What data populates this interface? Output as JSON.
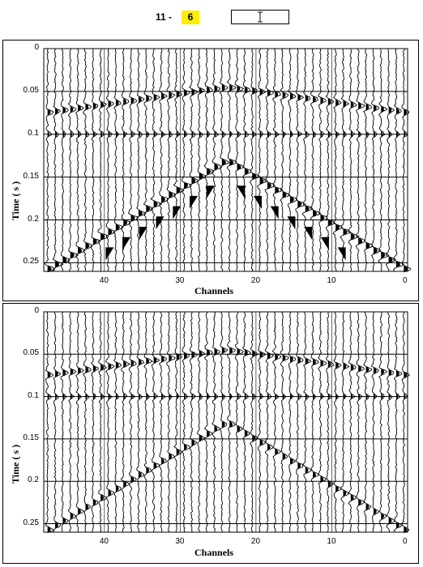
{
  "header": {
    "prefix": "11 -",
    "value": "6",
    "highlight_color": "#ffee00"
  },
  "panels": [
    {
      "id": "top",
      "xlabel": "Channels",
      "ylabel": "Time ( s )",
      "yticks": [
        "0",
        "0.05",
        "0.1",
        "0.15",
        "0.2",
        "0.25"
      ],
      "xticks": [
        "40",
        "30",
        "20",
        "10",
        "0"
      ],
      "shaded_wedges": true
    },
    {
      "id": "bottom",
      "xlabel": "Channels",
      "ylabel": "Time ( s )",
      "yticks": [
        "0",
        "0.05",
        "0.1",
        "0.15",
        "0.2",
        "0.25"
      ],
      "xticks": [
        "40",
        "30",
        "20",
        "10",
        "0"
      ],
      "shaded_wedges": false
    }
  ],
  "chart_data": [
    {
      "type": "seismic-wiggle",
      "title": "",
      "xlabel": "Channels",
      "ylabel": "Time ( s )",
      "xlim": [
        48,
        0
      ],
      "ylim": [
        0,
        0.26
      ],
      "channels": 48,
      "events": [
        {
          "name": "shallow reflection",
          "apex_channel": 24,
          "apex_time": 0.045,
          "edge_time": 0.075
        },
        {
          "name": "flat event",
          "time": 0.1
        },
        {
          "name": "hyperbola",
          "apex_channel": 24,
          "apex_time": 0.13,
          "edge_time": 0.26
        }
      ]
    },
    {
      "type": "seismic-wiggle",
      "title": "",
      "xlabel": "Channels",
      "ylabel": "Time ( s )",
      "xlim": [
        48,
        0
      ],
      "ylim": [
        0,
        0.26
      ],
      "channels": 48,
      "events": [
        {
          "name": "shallow reflection",
          "apex_channel": 24,
          "apex_time": 0.045,
          "edge_time": 0.075
        },
        {
          "name": "flat event",
          "time": 0.1
        },
        {
          "name": "hyperbola",
          "apex_channel": 24,
          "apex_time": 0.13,
          "edge_time": 0.26
        }
      ]
    }
  ]
}
